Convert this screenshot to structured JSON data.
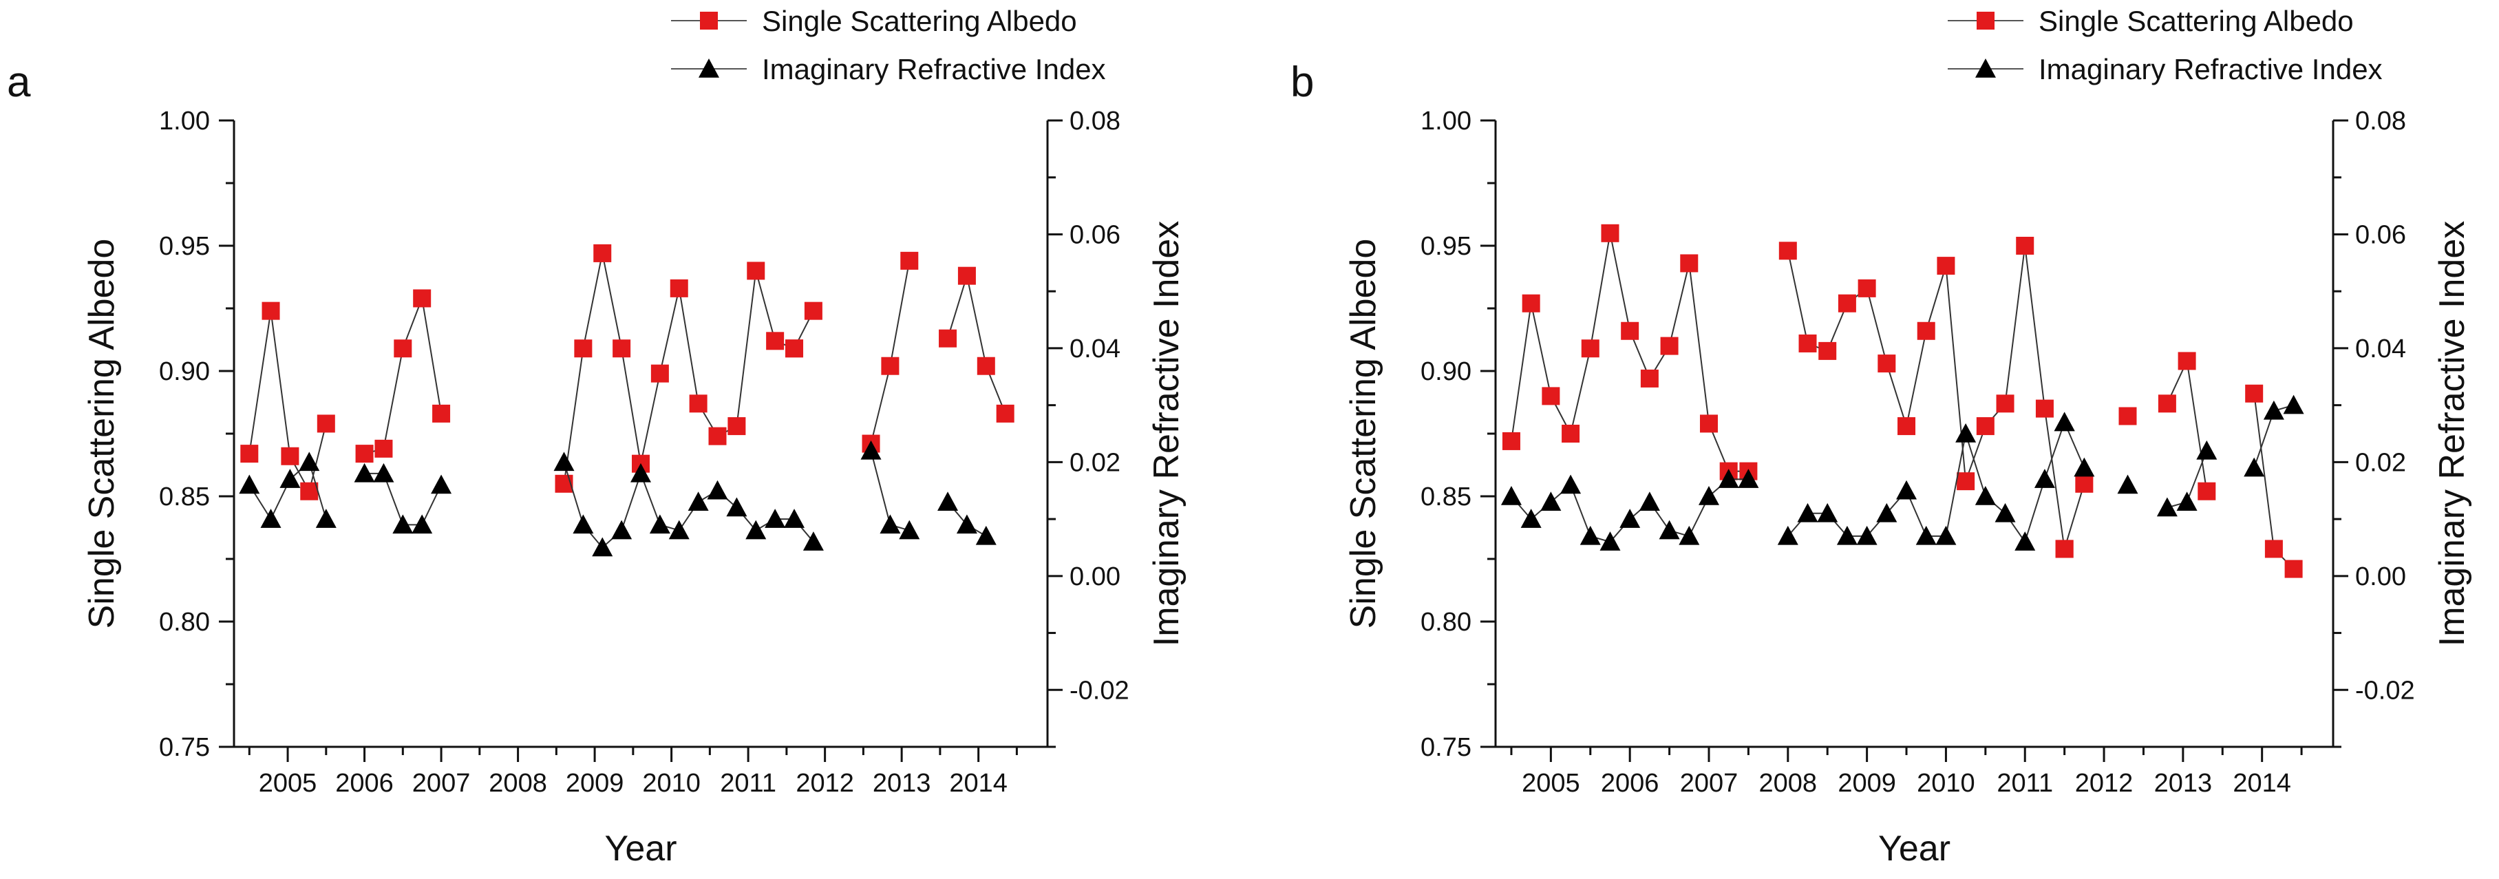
{
  "chart_data": [
    {
      "type": "line",
      "panel_label": "a",
      "xlabel": "Year",
      "ylabel": "Single Scattering Albedo",
      "y2label": "Imaginary Refractive Index",
      "ylim": [
        0.75,
        1.0
      ],
      "y2lim": [
        -0.03,
        0.08
      ],
      "xlim": [
        2004.3,
        2014.9
      ],
      "x_ticks": [
        "2005",
        "2006",
        "2007",
        "2008",
        "2009",
        "2010",
        "2011",
        "2012",
        "2013",
        "2014"
      ],
      "y_ticks": [
        "0.75",
        "0.80",
        "0.85",
        "0.90",
        "0.95",
        "1.00"
      ],
      "y2_ticks": [
        "-0.02",
        "0.00",
        "0.02",
        "0.04",
        "0.06",
        "0.08"
      ],
      "legend": {
        "position": "top-right",
        "entries": [
          "Single Scattering Albedo",
          "Imaginary Refractive Index"
        ]
      },
      "series": [
        {
          "name": "Single Scattering Albedo",
          "axis": "left",
          "color": "#e31a1c",
          "marker": "square",
          "segments": [
            {
              "x": [
                2004.5,
                2004.78,
                2005.03,
                2005.28,
                2005.5
              ],
              "y": [
                0.867,
                0.924,
                0.866,
                0.852,
                0.879
              ]
            },
            {
              "x": [
                2006.0,
                2006.25,
                2006.5,
                2006.75,
                2007.0
              ],
              "y": [
                0.867,
                0.869,
                0.909,
                0.929,
                0.883
              ]
            },
            {
              "x": [
                2008.6,
                2008.85,
                2009.1,
                2009.35,
                2009.6,
                2009.85,
                2010.1,
                2010.35,
                2010.6,
                2010.85,
                2011.1,
                2011.35,
                2011.6
              ],
              "y": [
                0.855,
                0.909,
                0.947,
                0.909,
                0.863,
                0.899,
                0.933,
                0.887,
                0.874,
                0.878,
                0.94,
                0.912,
                0.909
              ]
            },
            {
              "x": [
                2011.6,
                2011.85
              ],
              "y": [
                0.909,
                0.924
              ]
            },
            {
              "x": [
                2012.6,
                2012.85,
                2013.1
              ],
              "y": [
                0.871,
                0.902,
                0.944
              ]
            },
            {
              "x": [
                2013.6,
                2013.85,
                2014.1,
                2014.35
              ],
              "y": [
                0.913,
                0.938,
                0.902,
                0.883
              ]
            }
          ]
        },
        {
          "name": "Imaginary Refractive Index",
          "axis": "right",
          "color": "#000000",
          "marker": "triangle",
          "segments": [
            {
              "x": [
                2004.5,
                2004.78,
                2005.03,
                2005.28,
                2005.5
              ],
              "y": [
                0.016,
                0.01,
                0.017,
                0.02,
                0.01
              ]
            },
            {
              "x": [
                2006.0,
                2006.25,
                2006.5,
                2006.75,
                2007.0
              ],
              "y": [
                0.018,
                0.018,
                0.009,
                0.009,
                0.016
              ]
            },
            {
              "x": [
                2008.6,
                2008.85,
                2009.1,
                2009.35,
                2009.6,
                2009.85,
                2010.1,
                2010.35,
                2010.6,
                2010.85,
                2011.1,
                2011.35,
                2011.6,
                2011.85
              ],
              "y": [
                0.02,
                0.009,
                0.005,
                0.008,
                0.018,
                0.009,
                0.008,
                0.013,
                0.015,
                0.012,
                0.008,
                0.01,
                0.01,
                0.006
              ]
            },
            {
              "x": [
                2012.6,
                2012.85,
                2013.1
              ],
              "y": [
                0.022,
                0.009,
                0.008
              ]
            },
            {
              "x": [
                2013.6,
                2013.85,
                2014.1
              ],
              "y": [
                0.013,
                0.009,
                0.007
              ]
            }
          ]
        }
      ]
    },
    {
      "type": "line",
      "panel_label": "b",
      "xlabel": "Year",
      "ylabel": "Single Scattering Albedo",
      "y2label": "Imaginary Refractive Index",
      "ylim": [
        0.75,
        1.0
      ],
      "y2lim": [
        -0.03,
        0.08
      ],
      "xlim": [
        2004.3,
        2014.9
      ],
      "x_ticks": [
        "2005",
        "2006",
        "2007",
        "2008",
        "2009",
        "2010",
        "2011",
        "2012",
        "2013",
        "2014"
      ],
      "y_ticks": [
        "0.75",
        "0.80",
        "0.85",
        "0.90",
        "0.95",
        "1.00"
      ],
      "y2_ticks": [
        "-0.02",
        "0.00",
        "0.02",
        "0.04",
        "0.06",
        "0.08"
      ],
      "legend": {
        "position": "top-right",
        "entries": [
          "Single Scattering Albedo",
          "Imaginary Refractive Index"
        ]
      },
      "series": [
        {
          "name": "Single Scattering Albedo",
          "axis": "left",
          "color": "#e31a1c",
          "marker": "square",
          "segments": [
            {
              "x": [
                2004.5,
                2004.75,
                2005.0,
                2005.25,
                2005.5,
                2005.75,
                2006.0,
                2006.25,
                2006.5,
                2006.75,
                2007.0,
                2007.25,
                2007.5
              ],
              "y": [
                0.872,
                0.927,
                0.89,
                0.875,
                0.909,
                0.955,
                0.916,
                0.897,
                0.91,
                0.943,
                0.879,
                0.86,
                0.86
              ]
            },
            {
              "x": [
                2008.0,
                2008.25,
                2008.5,
                2008.75,
                2009.0,
                2009.25,
                2009.5,
                2009.75,
                2010.0,
                2010.25,
                2010.5,
                2010.75,
                2011.0,
                2011.25,
                2011.5
              ],
              "y": [
                0.948,
                0.911,
                0.908,
                0.927,
                0.933,
                0.903,
                0.878,
                0.916,
                0.942,
                0.856,
                0.878,
                0.887,
                0.95,
                0.885,
                0.829
              ]
            },
            {
              "x": [
                2011.5,
                2011.75
              ],
              "y": [
                0.829,
                0.855
              ]
            },
            {
              "x": [
                2012.3
              ],
              "y": [
                0.882
              ]
            },
            {
              "x": [
                2012.8,
                2013.05,
                2013.3
              ],
              "y": [
                0.887,
                0.904,
                0.852
              ]
            },
            {
              "x": [
                2013.9,
                2014.15,
                2014.4
              ],
              "y": [
                0.891,
                0.829,
                0.821
              ]
            }
          ]
        },
        {
          "name": "Imaginary Refractive Index",
          "axis": "right",
          "color": "#000000",
          "marker": "triangle",
          "segments": [
            {
              "x": [
                2004.5,
                2004.75,
                2005.0,
                2005.25,
                2005.5,
                2005.75,
                2006.0,
                2006.25,
                2006.5,
                2006.75,
                2007.0,
                2007.25,
                2007.5
              ],
              "y": [
                0.014,
                0.01,
                0.013,
                0.016,
                0.007,
                0.006,
                0.01,
                0.013,
                0.008,
                0.007,
                0.014,
                0.017,
                0.017
              ]
            },
            {
              "x": [
                2008.0,
                2008.25,
                2008.5,
                2008.75,
                2009.0,
                2009.25,
                2009.5,
                2009.75,
                2010.0,
                2010.25,
                2010.5,
                2010.75,
                2011.0,
                2011.25,
                2011.5
              ],
              "y": [
                0.007,
                0.011,
                0.011,
                0.007,
                0.007,
                0.011,
                0.015,
                0.007,
                0.007,
                0.025,
                0.014,
                0.011,
                0.006,
                0.017,
                0.027
              ]
            },
            {
              "x": [
                2011.5,
                2011.75
              ],
              "y": [
                0.027,
                0.019
              ]
            },
            {
              "x": [
                2012.3
              ],
              "y": [
                0.016
              ]
            },
            {
              "x": [
                2012.8,
                2013.05,
                2013.3
              ],
              "y": [
                0.012,
                0.013,
                0.022
              ]
            },
            {
              "x": [
                2013.9,
                2014.15,
                2014.4
              ],
              "y": [
                0.019,
                0.029,
                0.03
              ]
            }
          ]
        }
      ]
    }
  ]
}
